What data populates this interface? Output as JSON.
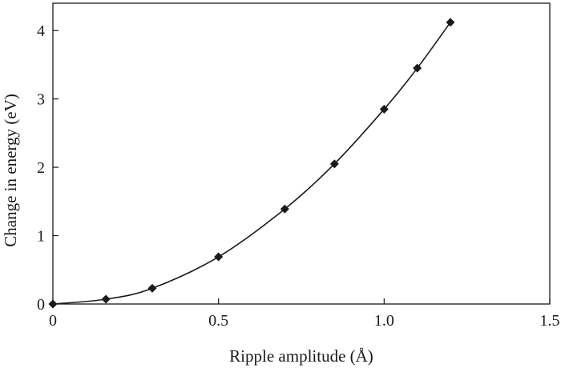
{
  "chart_data": {
    "type": "line",
    "title": "",
    "xlabel": "Ripple amplitude (Å)",
    "ylabel": "Change in energy (eV)",
    "xlim": [
      0,
      1.5
    ],
    "ylim": [
      0,
      4.4
    ],
    "x_ticks": [
      "0",
      "0.5",
      "1.0",
      "1.5"
    ],
    "x_tick_values": [
      0,
      0.5,
      1.0,
      1.5
    ],
    "y_ticks": [
      "0",
      "1",
      "2",
      "3",
      "4"
    ],
    "y_tick_values": [
      0,
      1,
      2,
      3,
      4
    ],
    "grid": false,
    "legend": "none",
    "series": [
      {
        "marker": "diamond",
        "color": "#1a1a1a",
        "x": [
          0,
          0.16,
          0.3,
          0.5,
          0.7,
          0.85,
          1.0,
          1.1,
          1.2
        ],
        "y": [
          0,
          0.07,
          0.23,
          0.69,
          1.39,
          2.05,
          2.85,
          3.45,
          4.12
        ]
      }
    ]
  }
}
